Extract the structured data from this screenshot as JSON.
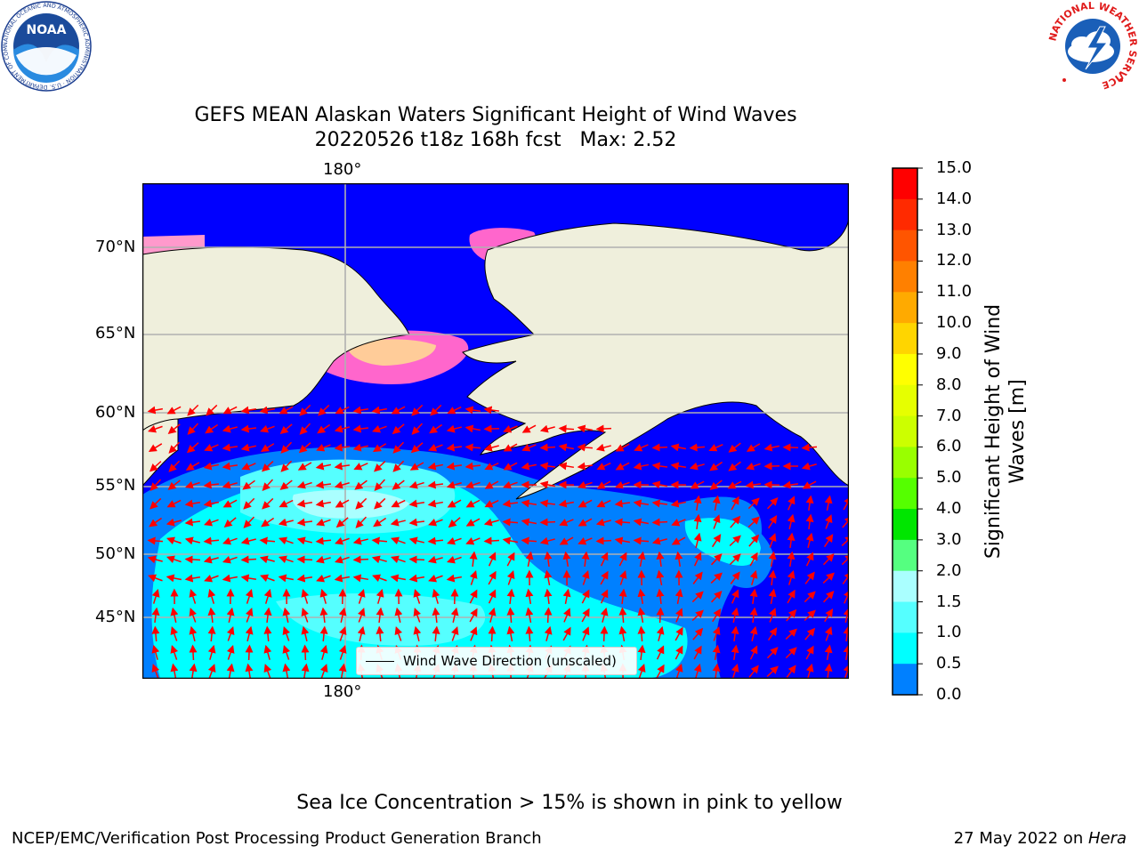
{
  "title": {
    "line1": "GEFS MEAN Alaskan Waters Significant Height of Wind Waves",
    "line2": "20220526 t18z 168h fcst   Max: 2.52"
  },
  "map": {
    "lon_label_top": "180°",
    "lon_label_bottom": "180°",
    "lat_labels": [
      "70°N",
      "65°N",
      "60°N",
      "55°N",
      "50°N",
      "45°N"
    ],
    "legend_label": "Wind Wave Direction (unscaled)"
  },
  "colorbar": {
    "label": "Significant Height of Wind Waves [m]",
    "ticks": [
      "15.0",
      "14.0",
      "13.0",
      "12.0",
      "11.0",
      "10.0",
      "9.0",
      "8.0",
      "7.0",
      "6.0",
      "5.0",
      "4.0",
      "3.0",
      "2.0",
      "1.5",
      "1.0",
      "0.5",
      "0.0"
    ],
    "colors": [
      "#ff0000",
      "#ff2a00",
      "#ff5500",
      "#ff8000",
      "#ffaa00",
      "#ffd500",
      "#ffff00",
      "#e6ff00",
      "#ccff00",
      "#99ff00",
      "#55ff00",
      "#00e600",
      "#55ff80",
      "#aaffff",
      "#55ffff",
      "#00ffff",
      "#0080ff",
      "#0000ff"
    ]
  },
  "logos": {
    "noaa": "NOAA",
    "nws_ring": "NATIONAL WEATHER SERVICE",
    "noaa_ring": "NATIONAL OCEANIC AND ATMOSPHERIC ADMINISTRATION · U.S. DEPARTMENT OF COMMERCE"
  },
  "footer": {
    "note": "Sea Ice Concentration > 15% is shown in pink to yellow",
    "credit_left": "NCEP/EMC/Verification Post Processing Product Generation Branch",
    "credit_right_date": "27 May 2022 on ",
    "credit_right_host": "Hera"
  }
}
